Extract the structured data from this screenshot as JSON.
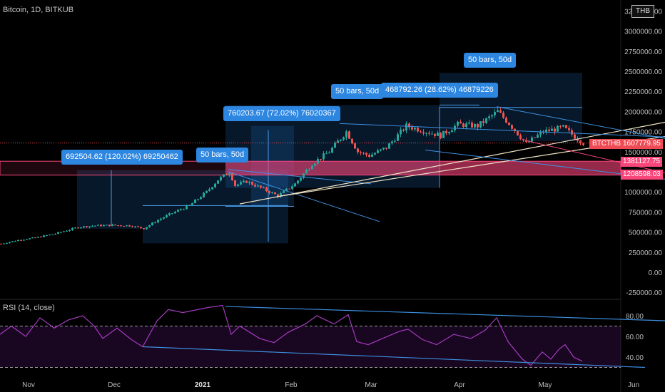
{
  "header": {
    "title": "Bitcoin, 1D, BITKUB",
    "currency": "THB"
  },
  "rsi_title": "RSI (14, close)",
  "colors": {
    "up": "#26a69a",
    "down": "#ef5350",
    "accent": "#2d86e0",
    "zone": "#f8457a",
    "rsi": "#9c27b0",
    "price_tag": "#f04b55"
  },
  "annotations": {
    "m1": "692504.62 (120.02%) 69250462",
    "b1": "50 bars, 50d",
    "m2": "760203.67 (72.02%) 76020367",
    "b2": "50 bars, 50d",
    "m3": "468792.26 (28.62%) 46879226",
    "b3": "50 bars, 50d"
  },
  "price_labels": {
    "symbol": "BTCTHB",
    "last": "1607779.95",
    "zone_top": "1381127.75",
    "zone_bottom": "1208598.03"
  },
  "chart_data": [
    {
      "type": "candlestick",
      "title": "Bitcoin, 1D, BITKUB",
      "y_ticks": [
        "-250000.00",
        "0.00",
        "250000.00",
        "500000.00",
        "750000.00",
        "1000000.00",
        "1250000.00",
        "1500000.00",
        "1750000.00",
        "2000000.00",
        "2250000.00",
        "2500000.00",
        "2750000.00",
        "3000000.00",
        "3250000.00"
      ],
      "x_ticks": [
        "Nov",
        "Dec",
        "2021",
        "Feb",
        "Mar",
        "Apr",
        "May",
        "Jun"
      ],
      "ylim": [
        -300000,
        3300000
      ],
      "last_price": 1607779.95,
      "support_zone": [
        1208598.03,
        1381127.75
      ],
      "close_path": [
        [
          "2020-10-22",
          355000
        ],
        [
          "2020-10-28",
          400000
        ],
        [
          "2020-11-03",
          430000
        ],
        [
          "2020-11-10",
          480000
        ],
        [
          "2020-11-18",
          560000
        ],
        [
          "2020-11-24",
          580000
        ],
        [
          "2020-11-30",
          585000
        ],
        [
          "2020-12-06",
          580000
        ],
        [
          "2020-12-11",
          545000
        ],
        [
          "2020-12-16",
          650000
        ],
        [
          "2020-12-20",
          720000
        ],
        [
          "2020-12-27",
          830000
        ],
        [
          "2021-01-02",
          1000000
        ],
        [
          "2021-01-06",
          1150000
        ],
        [
          "2021-01-10",
          1250000
        ],
        [
          "2021-01-12",
          1080000
        ],
        [
          "2021-01-16",
          1130000
        ],
        [
          "2021-01-21",
          1050000
        ],
        [
          "2021-01-27",
          950000
        ],
        [
          "2021-02-02",
          1100000
        ],
        [
          "2021-02-08",
          1350000
        ],
        [
          "2021-02-14",
          1500000
        ],
        [
          "2021-02-20",
          1750000
        ],
        [
          "2021-02-24",
          1500000
        ],
        [
          "2021-02-28",
          1450000
        ],
        [
          "2021-03-06",
          1550000
        ],
        [
          "2021-03-13",
          1820000
        ],
        [
          "2021-03-20",
          1750000
        ],
        [
          "2021-03-25",
          1700000
        ],
        [
          "2021-03-31",
          1840000
        ],
        [
          "2021-04-07",
          1820000
        ],
        [
          "2021-04-14",
          2000000
        ],
        [
          "2021-04-18",
          1850000
        ],
        [
          "2021-04-24",
          1600000
        ],
        [
          "2021-04-30",
          1750000
        ],
        [
          "2021-05-07",
          1800000
        ],
        [
          "2021-05-12",
          1660000
        ],
        [
          "2021-05-14",
          1607779.95
        ]
      ],
      "measure_boxes": [
        {
          "from": "2020-11-18",
          "to": "2020-12-11",
          "low": 540000,
          "high": 1270000
        },
        {
          "from": "2020-12-11",
          "to": "2021-01-31",
          "low": 360000,
          "high": 1270000
        },
        {
          "from": "2021-01-18",
          "to": "2021-02-02",
          "low": 820000,
          "high": 1820000
        },
        {
          "from": "2021-01-09",
          "to": "2021-03-01",
          "low": 1050000,
          "high": 2080000
        },
        {
          "from": "2021-03-01",
          "to": "2021-03-25",
          "low": 1050000,
          "high": 2080000
        },
        {
          "from": "2021-03-25",
          "to": "2021-05-14",
          "low": 1630000,
          "high": 2480000
        }
      ]
    },
    {
      "type": "line",
      "title": "RSI (14, close)",
      "y_ticks": [
        "40.00",
        "60.00",
        "80.00"
      ],
      "band": [
        30,
        70
      ],
      "values": [
        [
          "2020-10-22",
          62
        ],
        [
          "2020-10-26",
          70
        ],
        [
          "2020-10-31",
          60
        ],
        [
          "2020-11-05",
          78
        ],
        [
          "2020-11-10",
          68
        ],
        [
          "2020-11-15",
          76
        ],
        [
          "2020-11-20",
          80
        ],
        [
          "2020-11-24",
          70
        ],
        [
          "2020-11-27",
          58
        ],
        [
          "2020-12-02",
          68
        ],
        [
          "2020-12-07",
          57
        ],
        [
          "2020-12-11",
          50
        ],
        [
          "2020-12-16",
          75
        ],
        [
          "2020-12-20",
          86
        ],
        [
          "2020-12-25",
          83
        ],
        [
          "2021-01-03",
          88
        ],
        [
          "2021-01-08",
          90
        ],
        [
          "2021-01-11",
          62
        ],
        [
          "2021-01-14",
          70
        ],
        [
          "2021-01-21",
          58
        ],
        [
          "2021-01-26",
          54
        ],
        [
          "2021-01-31",
          64
        ],
        [
          "2021-02-06",
          72
        ],
        [
          "2021-02-10",
          80
        ],
        [
          "2021-02-16",
          72
        ],
        [
          "2021-02-21",
          81
        ],
        [
          "2021-02-24",
          55
        ],
        [
          "2021-02-28",
          52
        ],
        [
          "2021-03-05",
          58
        ],
        [
          "2021-03-11",
          65
        ],
        [
          "2021-03-14",
          67
        ],
        [
          "2021-03-19",
          57
        ],
        [
          "2021-03-24",
          52
        ],
        [
          "2021-03-30",
          62
        ],
        [
          "2021-04-05",
          58
        ],
        [
          "2021-04-10",
          66
        ],
        [
          "2021-04-14",
          78
        ],
        [
          "2021-04-18",
          55
        ],
        [
          "2021-04-23",
          38
        ],
        [
          "2021-04-26",
          32
        ],
        [
          "2021-04-30",
          45
        ],
        [
          "2021-05-03",
          38
        ],
        [
          "2021-05-06",
          48
        ],
        [
          "2021-05-08",
          52
        ],
        [
          "2021-05-11",
          40
        ],
        [
          "2021-05-14",
          36
        ]
      ],
      "trendline_top": [
        [
          "2021-01-09",
          89
        ],
        [
          "2021-06-14",
          75
        ]
      ],
      "trendline_bottom": [
        [
          "2020-12-11",
          50
        ],
        [
          "2021-06-05",
          30
        ]
      ]
    }
  ]
}
